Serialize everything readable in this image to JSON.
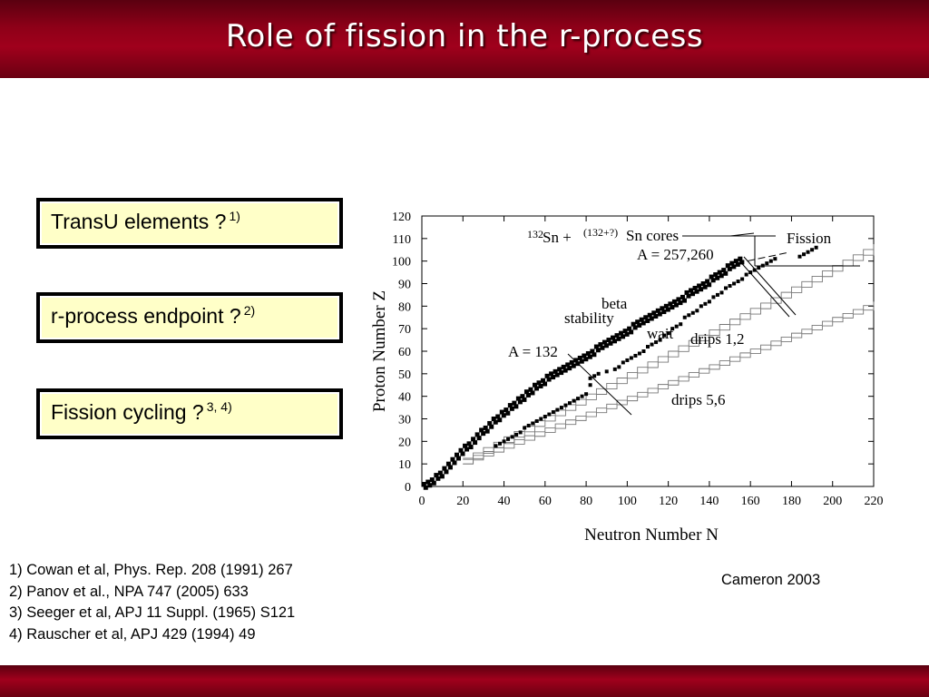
{
  "slide": {
    "title": "Role of fission in the r-process",
    "questions": [
      {
        "text": "TransU elements ?",
        "sup": "1)"
      },
      {
        "text": "r-process endpoint ?",
        "sup": "2)"
      },
      {
        "text": "Fission cycling ?",
        "sup": "3, 4)"
      }
    ],
    "references": [
      "1) Cowan et al, Phys. Rep. 208 (1991) 267",
      "2) Panov et al., NPA 747 (2005) 633",
      "3) Seeger et al, APJ 11 Suppl. (1965) S121",
      "4) Rauscher et al, APJ  429 (1994) 49"
    ],
    "credit": "Cameron 2003",
    "colors": {
      "banner": "#9a001c",
      "box_fill": "#ffffc8",
      "box_border": "#000000"
    }
  },
  "chart_data": {
    "type": "scatter",
    "xlabel": "Neutron Number N",
    "ylabel": "Proton Number Z",
    "xlim": [
      0,
      220
    ],
    "ylim": [
      0,
      120
    ],
    "xticks": [
      0,
      20,
      40,
      60,
      80,
      100,
      120,
      140,
      160,
      180,
      200,
      220
    ],
    "yticks": [
      0,
      10,
      20,
      30,
      40,
      50,
      60,
      70,
      80,
      90,
      100,
      110,
      120
    ],
    "grid": false,
    "annotations": {
      "cores_left_sup": "132",
      "cores_left": "Sn +",
      "cores_right_sup": "(132+?)",
      "cores_right": "Sn cores",
      "fission": "Fission",
      "a_heavy": "A = 257,260",
      "beta": "beta",
      "stability": "stability",
      "a_132": "A = 132",
      "wait": "wait",
      "drips12": "drips 1,2",
      "drips56": "drips 5,6"
    },
    "series": [
      {
        "role": "beta stability",
        "points": [
          [
            1,
            1
          ],
          [
            3,
            2
          ],
          [
            5,
            3
          ],
          [
            7,
            5
          ],
          [
            9,
            6
          ],
          [
            11,
            8
          ],
          [
            13,
            10
          ],
          [
            15,
            12
          ],
          [
            17,
            14
          ],
          [
            19,
            16
          ],
          [
            21,
            18
          ],
          [
            23,
            19
          ],
          [
            25,
            21
          ],
          [
            27,
            23
          ],
          [
            29,
            25
          ],
          [
            31,
            26
          ],
          [
            33,
            28
          ],
          [
            35,
            30
          ],
          [
            37,
            31
          ],
          [
            39,
            33
          ],
          [
            41,
            34
          ],
          [
            43,
            36
          ],
          [
            45,
            37
          ],
          [
            47,
            39
          ],
          [
            49,
            40
          ],
          [
            51,
            42
          ],
          [
            53,
            43
          ],
          [
            55,
            45
          ],
          [
            57,
            46
          ],
          [
            59,
            47
          ],
          [
            61,
            49
          ],
          [
            63,
            50
          ],
          [
            65,
            51
          ],
          [
            67,
            52
          ],
          [
            69,
            53
          ],
          [
            71,
            54
          ],
          [
            73,
            55
          ],
          [
            75,
            56
          ],
          [
            77,
            57
          ],
          [
            79,
            58
          ],
          [
            81,
            59
          ],
          [
            83,
            60
          ],
          [
            85,
            62
          ],
          [
            87,
            63
          ],
          [
            89,
            64
          ],
          [
            91,
            65
          ],
          [
            93,
            66
          ],
          [
            95,
            67
          ],
          [
            97,
            68
          ],
          [
            99,
            69
          ],
          [
            101,
            70
          ],
          [
            103,
            72
          ],
          [
            105,
            73
          ],
          [
            107,
            74
          ],
          [
            109,
            75
          ],
          [
            111,
            76
          ],
          [
            113,
            77
          ],
          [
            115,
            78
          ],
          [
            117,
            79
          ],
          [
            119,
            80
          ],
          [
            121,
            81
          ],
          [
            123,
            82
          ],
          [
            125,
            83
          ],
          [
            127,
            84
          ],
          [
            129,
            86
          ],
          [
            131,
            87
          ],
          [
            133,
            88
          ],
          [
            135,
            89
          ],
          [
            137,
            90
          ],
          [
            139,
            91
          ],
          [
            141,
            93
          ],
          [
            143,
            94
          ],
          [
            145,
            95
          ],
          [
            147,
            96
          ],
          [
            149,
            98
          ],
          [
            151,
            99
          ],
          [
            153,
            100
          ],
          [
            155,
            101
          ]
        ]
      },
      {
        "role": "r-process path",
        "points": [
          [
            36,
            18
          ],
          [
            38,
            19
          ],
          [
            40,
            20
          ],
          [
            42,
            21
          ],
          [
            44,
            22
          ],
          [
            46,
            23
          ],
          [
            48,
            24
          ],
          [
            50,
            26
          ],
          [
            52,
            27
          ],
          [
            54,
            28
          ],
          [
            56,
            29
          ],
          [
            58,
            30
          ],
          [
            60,
            31
          ],
          [
            62,
            32
          ],
          [
            64,
            33
          ],
          [
            66,
            34
          ],
          [
            68,
            35
          ],
          [
            70,
            36
          ],
          [
            72,
            37
          ],
          [
            74,
            38
          ],
          [
            76,
            39
          ],
          [
            78,
            40
          ],
          [
            80,
            41
          ],
          [
            82,
            45
          ],
          [
            82,
            48
          ],
          [
            84,
            49
          ],
          [
            86,
            50
          ],
          [
            90,
            51
          ],
          [
            94,
            52
          ],
          [
            96,
            53
          ],
          [
            98,
            55
          ],
          [
            100,
            56
          ],
          [
            102,
            57
          ],
          [
            104,
            58
          ],
          [
            106,
            59
          ],
          [
            108,
            60
          ],
          [
            110,
            62
          ],
          [
            112,
            63
          ],
          [
            114,
            64
          ],
          [
            116,
            65
          ],
          [
            118,
            67
          ],
          [
            120,
            68
          ],
          [
            122,
            70
          ],
          [
            124,
            71
          ],
          [
            126,
            72
          ],
          [
            128,
            75
          ],
          [
            130,
            76
          ],
          [
            132,
            77
          ],
          [
            134,
            78
          ],
          [
            136,
            80
          ],
          [
            138,
            81
          ],
          [
            140,
            82
          ],
          [
            142,
            84
          ],
          [
            144,
            85
          ],
          [
            146,
            86
          ],
          [
            148,
            88
          ],
          [
            150,
            89
          ],
          [
            152,
            90
          ],
          [
            154,
            91
          ],
          [
            156,
            92
          ],
          [
            158,
            94
          ],
          [
            160,
            95
          ],
          [
            162,
            96
          ],
          [
            164,
            97
          ],
          [
            166,
            98
          ],
          [
            168,
            99
          ],
          [
            170,
            100
          ],
          [
            172,
            101
          ]
        ]
      },
      {
        "role": "fission products",
        "points": [
          [
            184,
            102
          ],
          [
            186,
            103
          ],
          [
            188,
            104
          ],
          [
            190,
            105
          ],
          [
            192,
            106
          ]
        ]
      },
      {
        "role": "drip lines 1,2",
        "points": [
          [
            20,
            10
          ],
          [
            220,
            105
          ]
        ]
      },
      {
        "role": "drip lines 5,6",
        "points": [
          [
            20,
            10
          ],
          [
            220,
            80
          ]
        ]
      }
    ]
  }
}
